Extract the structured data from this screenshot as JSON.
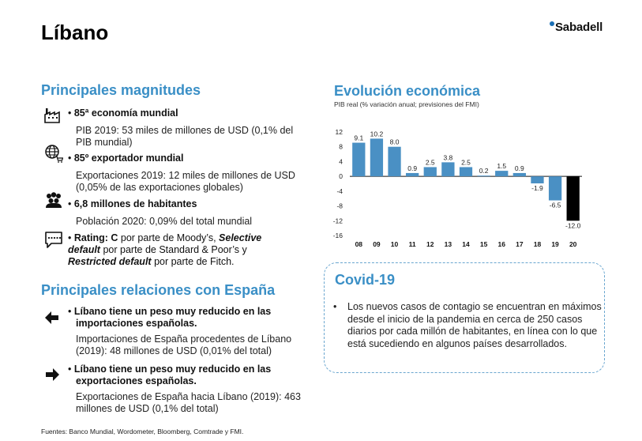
{
  "title": "Líbano",
  "logo": "Sabadell",
  "magnitudes": {
    "heading": "Principales magnitudes",
    "items": [
      {
        "bold": "85ª economía mundial",
        "desc1": "PIB 2019: 53 miles de millones de USD (0,1% del",
        "desc2": "PIB mundial)"
      },
      {
        "bold": "85º exportador mundial",
        "desc1": "Exportaciones 2019: 12 miles de millones de USD",
        "desc2": "(0,05% de las exportaciones globales)"
      },
      {
        "bold": "6,8 millones de habitantes",
        "desc1": "Población 2020: 0,09% del total mundial",
        "desc2": ""
      }
    ],
    "rating": {
      "p1": "Rating: C",
      "p2": " por parte de Moody’s, ",
      "p3": "Selective",
      "p4": "default",
      "p5": " por parte de Standard & Poor’s y",
      "p6": "Restricted default",
      "p7": " por parte de Fitch."
    }
  },
  "relaciones": {
    "heading": "Principales relaciones con España",
    "items": [
      {
        "bold1": "Líbano tiene un peso muy reducido en las",
        "bold2": "importaciones españolas.",
        "desc1": "Importaciones de España procedentes de Líbano",
        "desc2": "(2019): 48 millones de USD (0,01% del total)"
      },
      {
        "bold1": "Líbano tiene un peso muy reducido en las",
        "bold2": "exportaciones españolas.",
        "desc1": "Exportaciones de España hacia Líbano (2019): 463",
        "desc2": "millones de USD (0,1% del total)"
      }
    ]
  },
  "chart_heading": "Evolución económica",
  "chart_data": {
    "type": "bar",
    "title": "PIB real (% variación anual; previsiones del FMI)",
    "categories": [
      "08",
      "09",
      "10",
      "11",
      "12",
      "13",
      "14",
      "15",
      "16",
      "17",
      "18",
      "19",
      "20"
    ],
    "values": [
      9.1,
      10.2,
      8.0,
      0.9,
      2.5,
      3.8,
      2.5,
      0.2,
      1.5,
      0.9,
      -1.9,
      -6.5,
      -12.0
    ],
    "labels": [
      "9.1",
      "10.2",
      "8.0",
      "0.9",
      "2.5",
      "3.8",
      "2.5",
      "0.2",
      "1.5",
      "0.9",
      "-1.9",
      "-6.5",
      "-12.0"
    ],
    "ylim": [
      -16,
      12
    ],
    "yticks": [
      "12",
      "8",
      "4",
      "0",
      "-4",
      "-8",
      "-12",
      "-16"
    ],
    "colors": {
      "default": "#4a90c4",
      "forecast": "#000000"
    },
    "forecast_categories": [
      "20"
    ]
  },
  "covid": {
    "heading": "Covid-19",
    "bullet": "•",
    "text": "Los nuevos casos de contagio se encuentran en máximos desde el inicio de la pandemia en cerca de 250 casos diarios por cada millón de habitantes, en línea con lo que está sucediendo en algunos países desarrollados."
  },
  "footer": "Fuentes: Banco Mundial, Wordometer, Bloomberg, Comtrade y FMI.",
  "icons": [
    "factory-icon",
    "globe-cart-icon",
    "population-icon",
    "rating-chat-icon",
    "arrow-left-icon",
    "arrow-right-icon"
  ]
}
